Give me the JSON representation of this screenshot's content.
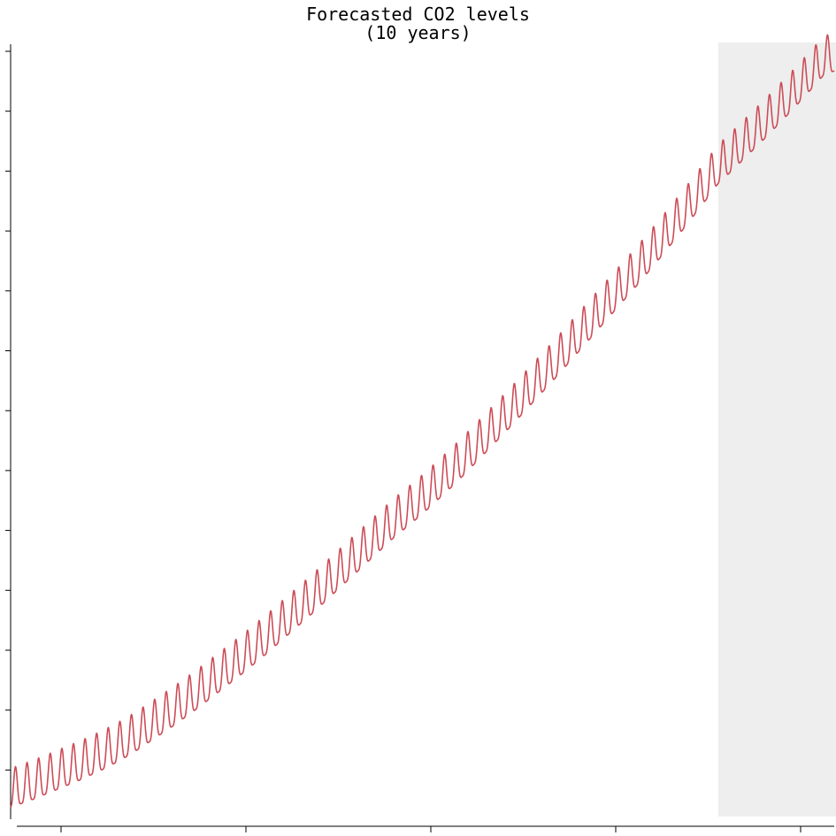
{
  "chart_data": {
    "type": "line",
    "title": "Forecasted CO2 levels",
    "subtitle": "(10 years)",
    "xlabel": "",
    "ylabel": "",
    "x_range": [
      1958.0,
      2029.0
    ],
    "ylim": [
      310.0,
      440.0
    ],
    "forecast_region": [
      2019.0,
      2029.0
    ],
    "grid": false,
    "axis_tick_labels_visible": false,
    "colors": {
      "series": "#cc4c57",
      "forecast_band": "#eeeeee",
      "axis": "#000000"
    },
    "series": [
      {
        "x": [
          1958.0,
          1959.0,
          1960.0,
          1961.0,
          1962.0,
          1963.0,
          1964.0,
          1965.0,
          1966.0,
          1967.0,
          1968.0,
          1969.0,
          1970.0,
          1971.0,
          1972.0,
          1973.0,
          1974.0,
          1975.0,
          1976.0,
          1977.0,
          1978.0,
          1979.0,
          1980.0,
          1981.0,
          1982.0,
          1983.0,
          1984.0,
          1985.0,
          1986.0,
          1987.0,
          1988.0,
          1989.0,
          1990.0,
          1991.0,
          1992.0,
          1993.0,
          1994.0,
          1995.0,
          1996.0,
          1997.0,
          1998.0,
          1999.0,
          2000.0,
          2001.0,
          2002.0,
          2003.0,
          2004.0,
          2005.0,
          2006.0,
          2007.0,
          2008.0,
          2009.0,
          2010.0,
          2011.0,
          2012.0,
          2013.0,
          2014.0,
          2015.0,
          2016.0,
          2017.0,
          2018.0,
          2019.0,
          2020.0,
          2021.0,
          2022.0,
          2023.0,
          2024.0,
          2025.0,
          2026.0,
          2027.0,
          2028.0,
          2029.0
        ],
        "y": [
          315.0,
          315.7,
          316.4,
          317.2,
          318.0,
          318.8,
          319.6,
          320.5,
          321.4,
          322.4,
          323.5,
          324.7,
          326.0,
          327.3,
          328.6,
          330.0,
          331.4,
          332.9,
          334.4,
          335.9,
          337.4,
          339.0,
          340.6,
          342.3,
          344.0,
          345.7,
          347.4,
          349.2,
          351.0,
          352.8,
          354.6,
          356.4,
          358.2,
          360.0,
          361.6,
          363.2,
          364.9,
          366.7,
          368.5,
          370.4,
          372.4,
          374.4,
          376.4,
          378.4,
          380.5,
          382.6,
          384.7,
          386.8,
          389.0,
          391.2,
          393.4,
          395.6,
          397.8,
          400.0,
          402.2,
          404.5,
          406.8,
          409.2,
          411.6,
          414.1,
          416.6,
          419.2,
          421.0,
          422.9,
          424.8,
          426.7,
          428.7,
          430.7,
          432.8,
          434.9,
          437.1,
          438.0
        ]
      }
    ],
    "seasonal_amplitude": 6.5,
    "seasonal_peak_month": 5
  }
}
